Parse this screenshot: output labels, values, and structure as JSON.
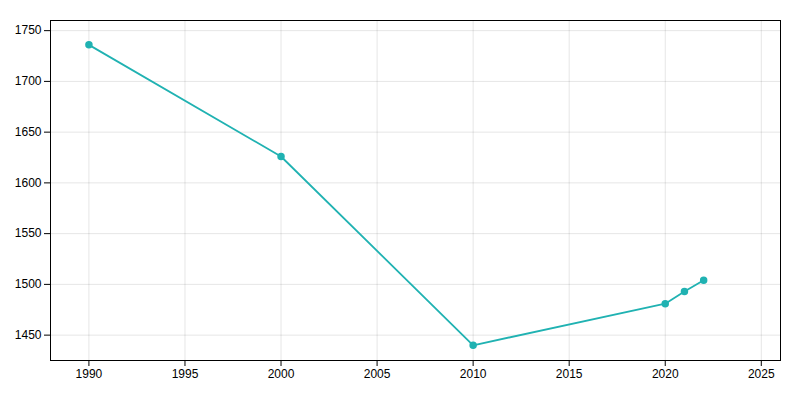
{
  "chart_data": {
    "type": "line",
    "x": [
      1990,
      2000,
      2010,
      2020,
      2021,
      2022
    ],
    "values": [
      1736,
      1626,
      1440,
      1481,
      1493,
      1504
    ],
    "color": "#20b2b2",
    "marker": "circle",
    "xlim": [
      1988,
      2026
    ],
    "xticks": [
      1990,
      1995,
      2000,
      2005,
      2010,
      2015,
      2020,
      2025
    ],
    "ylim": [
      1425,
      1760
    ],
    "yticks": [
      1450,
      1500,
      1550,
      1600,
      1650,
      1700,
      1750
    ],
    "grid": true
  }
}
